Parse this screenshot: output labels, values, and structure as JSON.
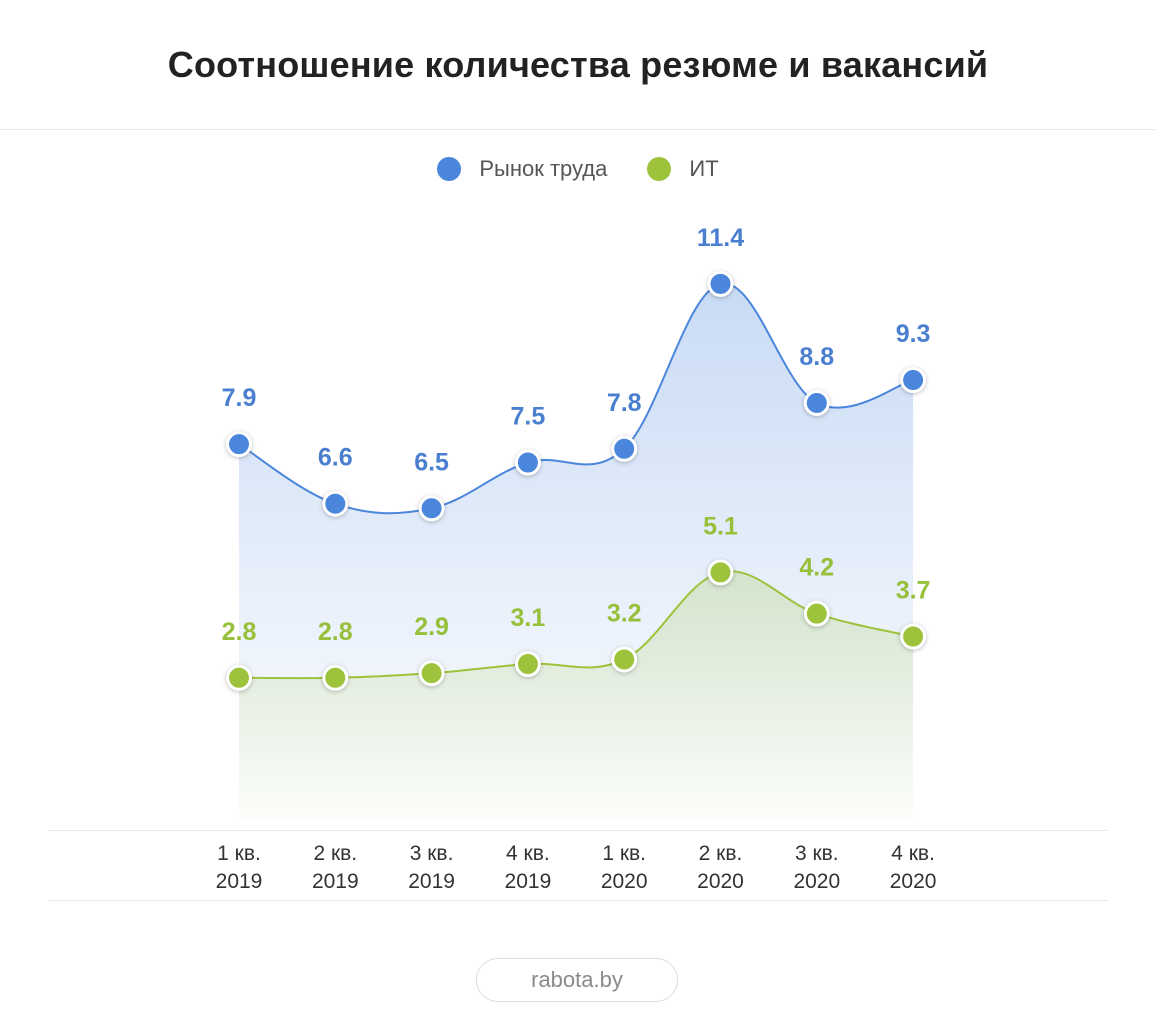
{
  "title": "Соотношение количества резюме и вакансий",
  "source": "rabota.by",
  "chart_data": {
    "type": "area",
    "categories": [
      [
        "1 кв.",
        "2019"
      ],
      [
        "2 кв.",
        "2019"
      ],
      [
        "3 кв.",
        "2019"
      ],
      [
        "4 кв.",
        "2019"
      ],
      [
        "1 кв.",
        "2020"
      ],
      [
        "2 кв.",
        "2020"
      ],
      [
        "3 кв.",
        "2020"
      ],
      [
        "4 кв.",
        "2020"
      ]
    ],
    "series": [
      {
        "name": "Рынок труда",
        "color": "#4a86dc",
        "label_color": "#4a7fd0",
        "values": [
          7.9,
          6.6,
          6.5,
          7.5,
          7.8,
          11.4,
          8.8,
          9.3
        ],
        "labels": [
          "7.9",
          "6.6",
          "6.5",
          "7.5",
          "7.8",
          "11.4",
          "8.8",
          "9.3"
        ]
      },
      {
        "name": "ИТ",
        "color": "#9cc33b",
        "label_color": "#97c03a",
        "values": [
          2.8,
          2.8,
          2.9,
          3.1,
          3.2,
          5.1,
          4.2,
          3.7
        ],
        "labels": [
          "2.8",
          "2.8",
          "2.9",
          "3.1",
          "3.2",
          "5.1",
          "4.2",
          "3.7"
        ]
      }
    ],
    "legend": "top-center",
    "grid": false
  }
}
